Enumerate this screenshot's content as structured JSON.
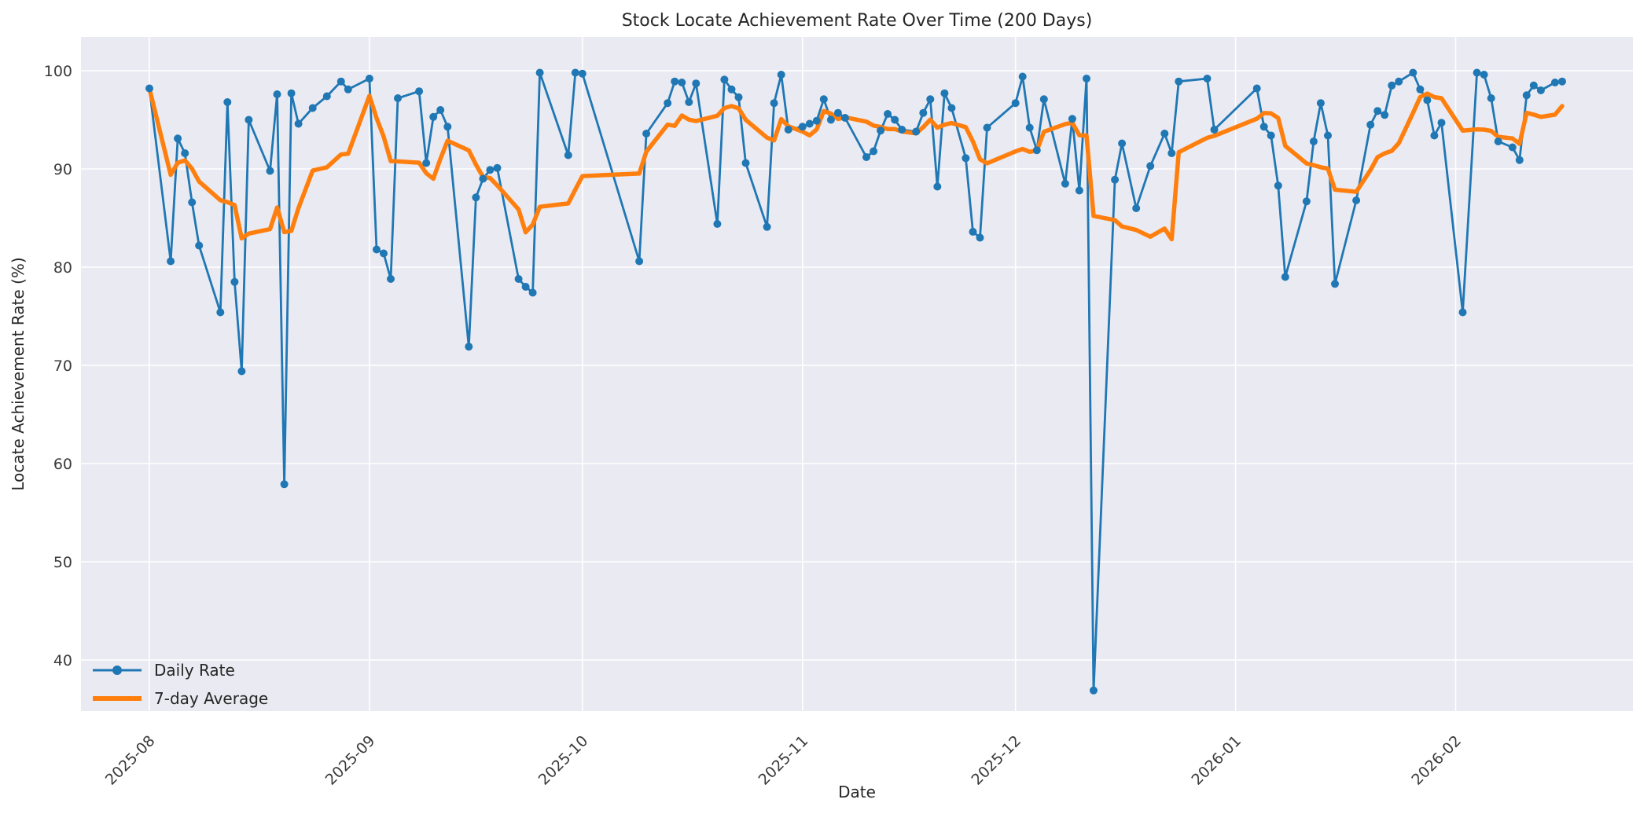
{
  "title": "Stock Locate Achievement Rate Over Time (200 Days)",
  "xlabel": "Date",
  "ylabel": "Locate Achievement Rate (%)",
  "legend": {
    "daily_label": "Daily Rate",
    "avg_label": "7-day Average"
  },
  "colors": {
    "daily": "#1f77b4",
    "average": "#ff7f0e",
    "plot_bg": "#eaeaf2",
    "grid": "#ffffff",
    "text": "#262626"
  },
  "chart_data": {
    "type": "line",
    "title": "Stock Locate Achievement Rate Over Time (200 Days)",
    "xlabel": "Date",
    "ylabel": "Locate Achievement Rate (%)",
    "start_date": "2025-08-01",
    "n_days": 200,
    "x_tick_labels": [
      "2025-08",
      "2025-09",
      "2025-10",
      "2025-11",
      "2025-12",
      "2026-01",
      "2026-02"
    ],
    "x_tick_days": [
      0,
      31,
      61,
      92,
      122,
      153,
      184
    ],
    "y_ticks": [
      40,
      50,
      60,
      70,
      80,
      90,
      100
    ],
    "ylim": [
      34.8,
      103.4
    ],
    "grid": true,
    "legend_position": "lower left",
    "avg_window": 7,
    "series": [
      {
        "name": "Daily Rate",
        "style": "line+markers"
      },
      {
        "name": "7-day Average",
        "style": "rolling-mean-of-daily"
      }
    ],
    "points": [
      [
        0,
        98.2
      ],
      [
        3,
        80.6
      ],
      [
        4,
        93.1
      ],
      [
        5,
        91.6
      ],
      [
        6,
        86.6
      ],
      [
        7,
        82.2
      ],
      [
        10,
        75.4
      ],
      [
        11,
        96.8
      ],
      [
        12,
        78.5
      ],
      [
        13,
        69.4
      ],
      [
        14,
        95.0
      ],
      [
        17,
        89.8
      ],
      [
        18,
        97.6
      ],
      [
        19,
        57.9
      ],
      [
        20,
        97.7
      ],
      [
        21,
        94.6
      ],
      [
        23,
        96.2
      ],
      [
        25,
        97.4
      ],
      [
        27,
        98.9
      ],
      [
        28,
        98.1
      ],
      [
        31,
        99.2
      ],
      [
        32,
        81.8
      ],
      [
        33,
        81.4
      ],
      [
        34,
        78.8
      ],
      [
        35,
        97.2
      ],
      [
        38,
        97.9
      ],
      [
        39,
        90.6
      ],
      [
        40,
        95.3
      ],
      [
        41,
        96.0
      ],
      [
        42,
        94.3
      ],
      [
        45,
        71.9
      ],
      [
        46,
        87.1
      ],
      [
        47,
        89.0
      ],
      [
        48,
        89.9
      ],
      [
        49,
        90.1
      ],
      [
        52,
        78.8
      ],
      [
        53,
        78.0
      ],
      [
        54,
        77.4
      ],
      [
        55,
        99.8
      ],
      [
        59,
        91.4
      ],
      [
        60,
        99.8
      ],
      [
        61,
        99.7
      ],
      [
        69,
        80.6
      ],
      [
        70,
        93.6
      ],
      [
        73,
        96.7
      ],
      [
        74,
        98.9
      ],
      [
        75,
        98.8
      ],
      [
        76,
        96.8
      ],
      [
        77,
        98.7
      ],
      [
        80,
        84.4
      ],
      [
        81,
        99.1
      ],
      [
        82,
        98.1
      ],
      [
        83,
        97.3
      ],
      [
        84,
        90.6
      ],
      [
        87,
        84.1
      ],
      [
        88,
        96.7
      ],
      [
        89,
        99.6
      ],
      [
        90,
        94.0
      ],
      [
        92,
        94.3
      ],
      [
        93,
        94.6
      ],
      [
        94,
        94.9
      ],
      [
        95,
        97.1
      ],
      [
        96,
        95.0
      ],
      [
        97,
        95.7
      ],
      [
        98,
        95.2
      ],
      [
        101,
        91.2
      ],
      [
        102,
        91.8
      ],
      [
        103,
        93.9
      ],
      [
        104,
        95.6
      ],
      [
        105,
        95.0
      ],
      [
        106,
        94.0
      ],
      [
        108,
        93.8
      ],
      [
        109,
        95.7
      ],
      [
        110,
        97.1
      ],
      [
        111,
        88.2
      ],
      [
        112,
        97.7
      ],
      [
        113,
        96.2
      ],
      [
        115,
        91.1
      ],
      [
        116,
        83.6
      ],
      [
        117,
        83.0
      ],
      [
        118,
        94.2
      ],
      [
        122,
        96.7
      ],
      [
        123,
        99.4
      ],
      [
        124,
        94.2
      ],
      [
        125,
        91.9
      ],
      [
        126,
        97.1
      ],
      [
        129,
        88.5
      ],
      [
        130,
        95.1
      ],
      [
        131,
        87.8
      ],
      [
        132,
        99.2
      ],
      [
        133,
        36.9
      ],
      [
        136,
        88.9
      ],
      [
        137,
        92.6
      ],
      [
        139,
        86.0
      ],
      [
        141,
        90.3
      ],
      [
        143,
        93.6
      ],
      [
        144,
        91.6
      ],
      [
        145,
        98.9
      ],
      [
        149,
        99.2
      ],
      [
        150,
        94.0
      ],
      [
        156,
        98.2
      ],
      [
        157,
        94.3
      ],
      [
        158,
        93.4
      ],
      [
        159,
        88.3
      ],
      [
        160,
        79.0
      ],
      [
        163,
        86.7
      ],
      [
        164,
        92.8
      ],
      [
        165,
        96.7
      ],
      [
        166,
        93.4
      ],
      [
        167,
        78.3
      ],
      [
        170,
        86.8
      ],
      [
        172,
        94.5
      ],
      [
        173,
        95.9
      ],
      [
        174,
        95.5
      ],
      [
        175,
        98.5
      ],
      [
        176,
        98.9
      ],
      [
        178,
        99.8
      ],
      [
        179,
        98.1
      ],
      [
        180,
        97.0
      ],
      [
        181,
        93.4
      ],
      [
        182,
        94.7
      ],
      [
        185,
        75.4
      ],
      [
        187,
        99.8
      ],
      [
        188,
        99.6
      ],
      [
        189,
        97.2
      ],
      [
        190,
        92.8
      ],
      [
        192,
        92.2
      ],
      [
        193,
        90.9
      ],
      [
        194,
        97.5
      ],
      [
        195,
        98.5
      ],
      [
        196,
        98.0
      ],
      [
        198,
        98.8
      ],
      [
        199,
        98.9
      ]
    ]
  }
}
